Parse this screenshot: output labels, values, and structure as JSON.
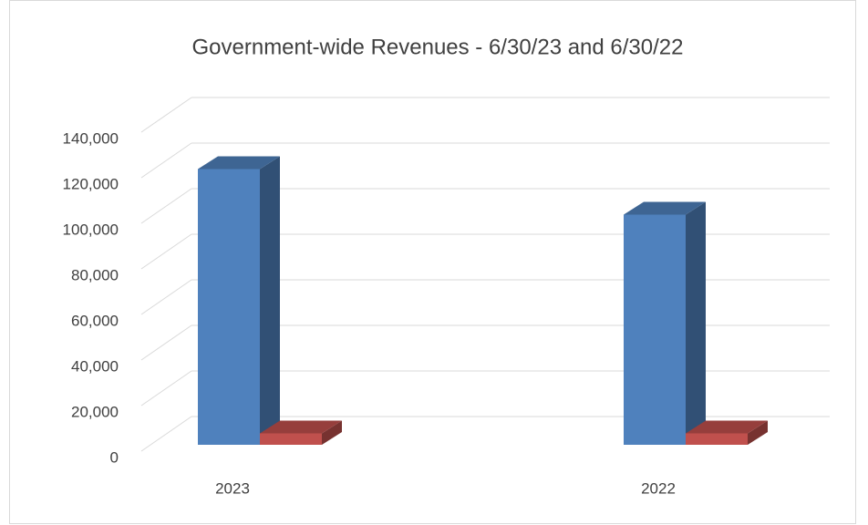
{
  "chart_data": {
    "type": "bar3d",
    "title": "Government-wide  Revenues - 6/30/23 and 6/30/22",
    "categories": [
      "2023",
      "2022"
    ],
    "series": [
      {
        "color": "#4f81bd",
        "values": [
          121000,
          101000
        ]
      },
      {
        "color": "#c0504d",
        "values": [
          5000,
          5000
        ]
      }
    ],
    "ylim": [
      0,
      140000
    ],
    "yticks": [
      0,
      {
        "value": 20000,
        "label": "20,000"
      },
      {
        "value": 40000,
        "label": "40,000"
      },
      {
        "value": 60000,
        "label": "60,000"
      },
      {
        "value": 80000,
        "label": "80,000"
      },
      {
        "value": 100000,
        "label": "100,000"
      },
      {
        "value": 120000,
        "label": "120,000"
      },
      {
        "value": 140000,
        "label": "140,000"
      }
    ],
    "grid": true
  }
}
